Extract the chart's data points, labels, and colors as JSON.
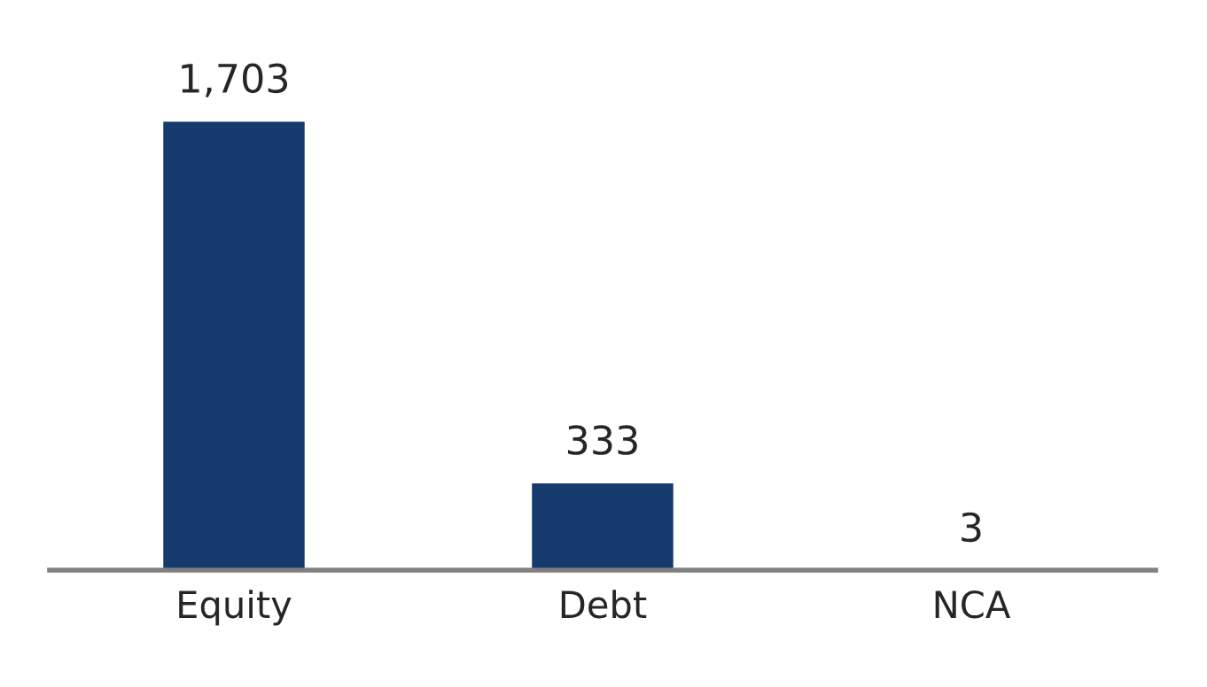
{
  "chart_data": {
    "type": "bar",
    "categories": [
      "Equity",
      "Debt",
      "NCA"
    ],
    "values": [
      1703,
      333,
      3
    ],
    "color": "#173a6e",
    "data_labels": true,
    "value_labels": [
      "1,703",
      "333",
      "3"
    ],
    "grid": false,
    "legend": false
  }
}
